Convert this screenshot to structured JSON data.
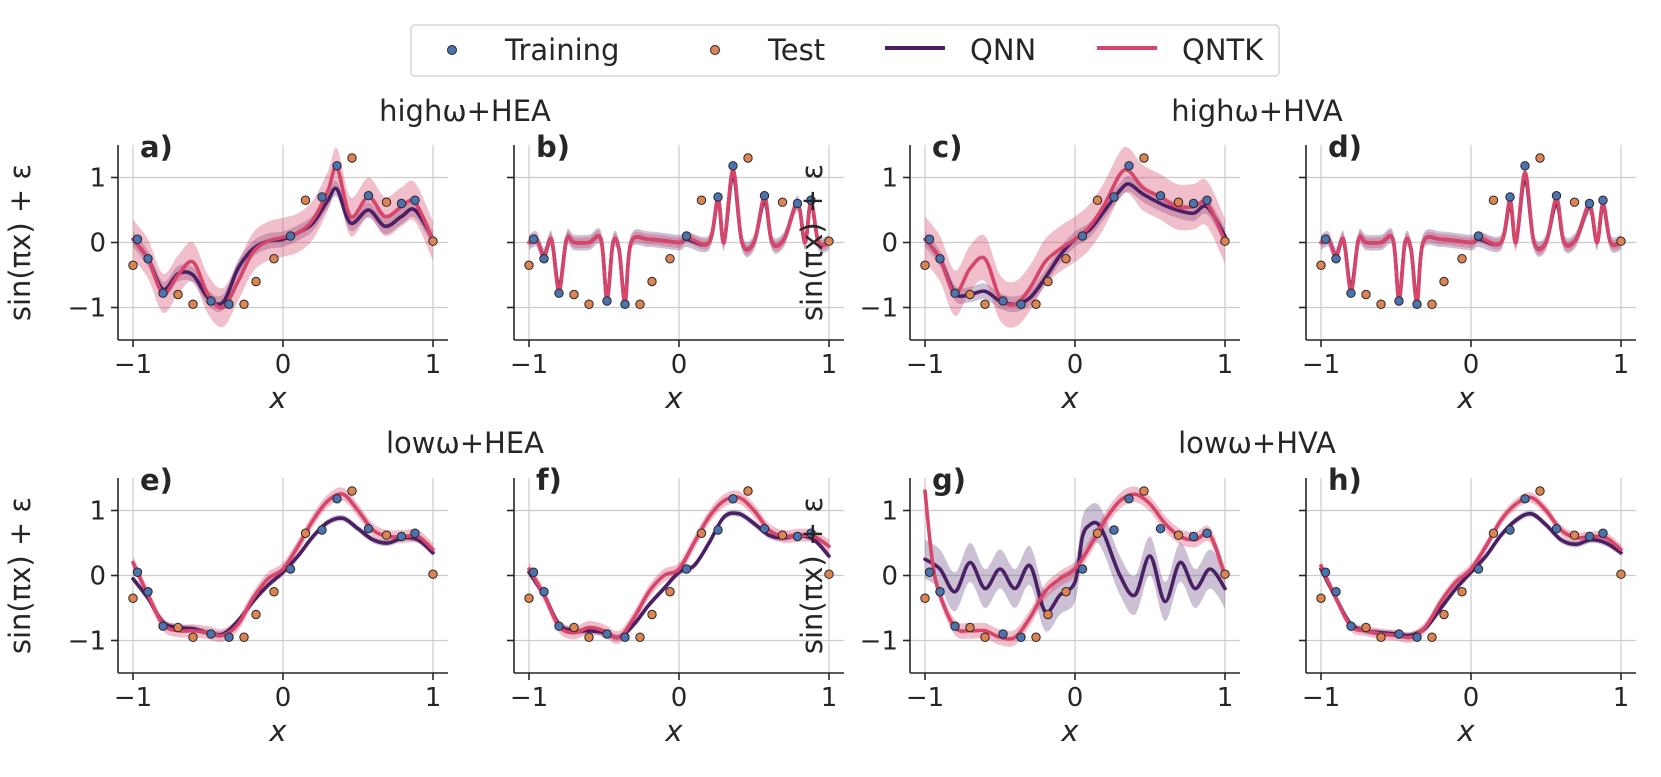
{
  "legend": {
    "training": "Training",
    "test": "Test",
    "qnn": "QNN",
    "qntk": "QNTK"
  },
  "colors": {
    "training": "#4c72b0",
    "test": "#dd8452",
    "qnn": "#4a1f63",
    "qntk": "#d7456a",
    "qnn_band": "#6a4a85",
    "qntk_band": "#d7456a"
  },
  "group_titles": [
    {
      "text": "highω+HEA"
    },
    {
      "text": "highω+HVA"
    },
    {
      "text": "lowω+HEA"
    },
    {
      "text": "lowω+HVA"
    }
  ],
  "axes": {
    "xlabel": "x",
    "ylabel": "sin(πx) + ε",
    "xlim": [
      -1.1,
      1.1
    ],
    "ylim": [
      -1.5,
      1.5
    ],
    "xticks": [
      -1,
      0,
      1
    ],
    "yticks": [
      -1,
      0,
      1
    ]
  },
  "chart_data": {
    "type": "scatter+line",
    "training": {
      "x": [
        -0.97,
        -0.9,
        -0.8,
        -0.48,
        -0.36,
        0.05,
        0.26,
        0.36,
        0.57,
        0.79,
        0.88
      ],
      "y": [
        0.05,
        -0.25,
        -0.78,
        -0.9,
        -0.95,
        0.1,
        0.7,
        1.18,
        0.72,
        0.6,
        0.65
      ]
    },
    "test": {
      "x": [
        -1.0,
        -0.7,
        -0.6,
        -0.26,
        -0.18,
        -0.06,
        0.15,
        0.46,
        0.69,
        1.0
      ],
      "y": [
        -0.35,
        -0.8,
        -0.95,
        -0.95,
        -0.6,
        -0.25,
        0.65,
        1.3,
        0.62,
        0.02
      ]
    },
    "panels": [
      {
        "label": "a)",
        "qnn": {
          "x": [
            -1,
            -0.9,
            -0.8,
            -0.7,
            -0.6,
            -0.5,
            -0.4,
            -0.3,
            -0.2,
            -0.1,
            0,
            0.1,
            0.2,
            0.3,
            0.36,
            0.45,
            0.57,
            0.68,
            0.79,
            0.88,
            1
          ],
          "y": [
            0.05,
            -0.25,
            -0.72,
            -0.48,
            -0.5,
            -0.85,
            -0.92,
            -0.4,
            -0.1,
            0.02,
            0.05,
            0.15,
            0.3,
            0.65,
            0.82,
            0.3,
            0.5,
            0.25,
            0.4,
            0.5,
            0.05
          ],
          "band": 0.12
        },
        "qntk": {
          "x": [
            -1,
            -0.9,
            -0.8,
            -0.7,
            -0.6,
            -0.5,
            -0.4,
            -0.3,
            -0.2,
            -0.1,
            0,
            0.1,
            0.2,
            0.3,
            0.36,
            0.45,
            0.57,
            0.68,
            0.79,
            0.88,
            1
          ],
          "y": [
            0.05,
            -0.25,
            -0.78,
            -0.5,
            -0.3,
            -0.8,
            -1.0,
            -0.6,
            -0.15,
            0.02,
            0.08,
            0.15,
            0.35,
            0.8,
            1.15,
            0.4,
            0.7,
            0.4,
            0.55,
            0.62,
            0.02
          ],
          "band": 0.3
        }
      },
      {
        "label": "b)",
        "qnn": {
          "x": [
            -1,
            -0.95,
            -0.9,
            -0.85,
            -0.8,
            -0.75,
            -0.7,
            -0.6,
            -0.52,
            -0.48,
            -0.44,
            -0.4,
            -0.36,
            -0.32,
            -0.2,
            0,
            0.05,
            0.2,
            0.26,
            0.3,
            0.36,
            0.42,
            0.5,
            0.57,
            0.62,
            0.7,
            0.79,
            0.84,
            0.88,
            0.93,
            1
          ],
          "y": [
            0,
            0.05,
            -0.2,
            0.05,
            -0.7,
            0.05,
            0.0,
            0.0,
            0.05,
            -0.85,
            0.0,
            -0.1,
            -0.9,
            0.0,
            0.05,
            0.0,
            0.05,
            0.0,
            0.65,
            0.0,
            1.05,
            0.0,
            0.0,
            0.65,
            0.0,
            0.05,
            0.6,
            0.0,
            0.62,
            0.0,
            0.0
          ],
          "band": 0.12
        },
        "qntk": {
          "x": [
            -1,
            -0.95,
            -0.9,
            -0.85,
            -0.8,
            -0.75,
            -0.7,
            -0.6,
            -0.52,
            -0.48,
            -0.44,
            -0.4,
            -0.36,
            -0.32,
            -0.2,
            0,
            0.05,
            0.2,
            0.26,
            0.3,
            0.36,
            0.42,
            0.5,
            0.57,
            0.62,
            0.7,
            0.79,
            0.84,
            0.88,
            0.93,
            1
          ],
          "y": [
            0,
            0.05,
            -0.22,
            0.05,
            -0.75,
            0.05,
            0.0,
            0.0,
            0.05,
            -0.88,
            0.0,
            -0.1,
            -0.93,
            0.0,
            0.05,
            0.0,
            0.08,
            0.0,
            0.68,
            0.0,
            1.12,
            0.0,
            0.0,
            0.7,
            0.0,
            0.05,
            0.6,
            0.0,
            0.63,
            0.0,
            0.0
          ],
          "band": 0.08
        }
      },
      {
        "label": "c)",
        "qnn": {
          "x": [
            -1,
            -0.9,
            -0.8,
            -0.7,
            -0.6,
            -0.5,
            -0.4,
            -0.3,
            -0.2,
            -0.1,
            0,
            0.1,
            0.2,
            0.3,
            0.36,
            0.45,
            0.57,
            0.68,
            0.79,
            0.88,
            1
          ],
          "y": [
            0.05,
            -0.25,
            -0.78,
            -0.8,
            -0.75,
            -0.9,
            -0.95,
            -0.85,
            -0.55,
            -0.2,
            0.05,
            0.2,
            0.5,
            0.8,
            0.9,
            0.75,
            0.6,
            0.5,
            0.45,
            0.55,
            0.1
          ],
          "band": 0.12
        },
        "qntk": {
          "x": [
            -1,
            -0.9,
            -0.8,
            -0.7,
            -0.6,
            -0.5,
            -0.4,
            -0.3,
            -0.2,
            -0.1,
            0,
            0.1,
            0.2,
            0.3,
            0.36,
            0.45,
            0.57,
            0.68,
            0.79,
            0.88,
            1
          ],
          "y": [
            0.05,
            -0.25,
            -0.78,
            -0.4,
            -0.25,
            -0.85,
            -0.95,
            -0.7,
            -0.3,
            -0.1,
            0.05,
            0.25,
            0.6,
            1.05,
            1.1,
            0.85,
            0.7,
            0.55,
            0.55,
            0.6,
            0.02
          ],
          "band": 0.35
        }
      },
      {
        "label": "d)",
        "qnn": {
          "x": [
            -1,
            -0.95,
            -0.9,
            -0.85,
            -0.8,
            -0.75,
            -0.7,
            -0.6,
            -0.52,
            -0.48,
            -0.44,
            -0.4,
            -0.36,
            -0.32,
            -0.2,
            0,
            0.05,
            0.2,
            0.26,
            0.3,
            0.36,
            0.42,
            0.5,
            0.57,
            0.62,
            0.7,
            0.79,
            0.84,
            0.88,
            0.93,
            1
          ],
          "y": [
            0,
            0.05,
            -0.2,
            0.05,
            -0.7,
            0.05,
            0.0,
            0.0,
            0.05,
            -0.85,
            0.0,
            -0.1,
            -0.9,
            0.0,
            0.05,
            0.0,
            0.05,
            0.0,
            0.6,
            0.0,
            1.0,
            0.0,
            0.0,
            0.62,
            0.0,
            0.05,
            0.55,
            0.0,
            0.58,
            0.0,
            0.0
          ],
          "band": 0.12
        },
        "qntk": {
          "x": [
            -1,
            -0.95,
            -0.9,
            -0.85,
            -0.8,
            -0.75,
            -0.7,
            -0.6,
            -0.52,
            -0.48,
            -0.44,
            -0.4,
            -0.36,
            -0.32,
            -0.2,
            0,
            0.05,
            0.2,
            0.26,
            0.3,
            0.36,
            0.42,
            0.5,
            0.57,
            0.62,
            0.7,
            0.79,
            0.84,
            0.88,
            0.93,
            1
          ],
          "y": [
            0,
            0.05,
            -0.22,
            0.05,
            -0.75,
            0.05,
            0.0,
            0.0,
            0.05,
            -0.88,
            0.0,
            -0.1,
            -0.93,
            0.0,
            0.05,
            0.0,
            0.08,
            0.0,
            0.65,
            0.0,
            1.08,
            0.0,
            0.0,
            0.68,
            0.0,
            0.05,
            0.58,
            0.0,
            0.6,
            0.0,
            0.0
          ],
          "band": 0.08
        }
      },
      {
        "label": "e)",
        "qnn": {
          "x": [
            -1,
            -0.9,
            -0.8,
            -0.7,
            -0.6,
            -0.5,
            -0.4,
            -0.3,
            -0.2,
            -0.1,
            0,
            0.1,
            0.2,
            0.3,
            0.4,
            0.5,
            0.6,
            0.7,
            0.8,
            0.9,
            1
          ],
          "y": [
            -0.05,
            -0.35,
            -0.72,
            -0.8,
            -0.82,
            -0.88,
            -0.9,
            -0.7,
            -0.4,
            -0.15,
            0.05,
            0.3,
            0.6,
            0.82,
            0.88,
            0.72,
            0.55,
            0.5,
            0.58,
            0.55,
            0.35
          ],
          "band": 0.05
        },
        "qntk": {
          "x": [
            -1,
            -0.9,
            -0.8,
            -0.7,
            -0.6,
            -0.5,
            -0.4,
            -0.3,
            -0.2,
            -0.1,
            0,
            0.1,
            0.2,
            0.3,
            0.4,
            0.5,
            0.6,
            0.7,
            0.8,
            0.9,
            1
          ],
          "y": [
            0.2,
            -0.3,
            -0.75,
            -0.85,
            -0.85,
            -0.88,
            -0.92,
            -0.75,
            -0.35,
            -0.05,
            0.1,
            0.45,
            0.85,
            1.15,
            1.25,
            1.0,
            0.7,
            0.6,
            0.6,
            0.6,
            0.4
          ],
          "band": 0.1
        }
      },
      {
        "label": "f)",
        "qnn": {
          "x": [
            -1,
            -0.9,
            -0.8,
            -0.7,
            -0.6,
            -0.5,
            -0.4,
            -0.3,
            -0.2,
            -0.1,
            0,
            0.1,
            0.2,
            0.3,
            0.4,
            0.5,
            0.6,
            0.7,
            0.8,
            0.9,
            1
          ],
          "y": [
            0.05,
            -0.3,
            -0.75,
            -0.85,
            -0.85,
            -0.88,
            -0.95,
            -0.75,
            -0.45,
            -0.2,
            0.05,
            0.15,
            0.5,
            0.9,
            0.95,
            0.8,
            0.62,
            0.58,
            0.62,
            0.55,
            0.3
          ],
          "band": 0.05
        },
        "qntk": {
          "x": [
            -1,
            -0.9,
            -0.8,
            -0.7,
            -0.6,
            -0.5,
            -0.4,
            -0.3,
            -0.2,
            -0.1,
            0,
            0.1,
            0.2,
            0.3,
            0.4,
            0.5,
            0.6,
            0.7,
            0.8,
            0.9,
            1
          ],
          "y": [
            0.1,
            -0.3,
            -0.78,
            -0.88,
            -0.8,
            -0.85,
            -0.95,
            -0.65,
            -0.25,
            0.0,
            0.1,
            0.5,
            0.9,
            1.15,
            1.2,
            1.0,
            0.7,
            0.6,
            0.62,
            0.6,
            0.45
          ],
          "band": 0.1
        }
      },
      {
        "label": "g)",
        "qnn": {
          "x": [
            -1,
            -0.9,
            -0.8,
            -0.7,
            -0.6,
            -0.5,
            -0.4,
            -0.3,
            -0.2,
            -0.1,
            0,
            0.05,
            0.1,
            0.15,
            0.2,
            0.3,
            0.4,
            0.5,
            0.6,
            0.7,
            0.8,
            0.9,
            1
          ],
          "y": [
            0.25,
            0.1,
            -0.25,
            0.2,
            -0.2,
            0.1,
            -0.2,
            0.15,
            -0.55,
            -0.3,
            -0.1,
            0.6,
            0.78,
            0.8,
            0.6,
            0.0,
            -0.3,
            0.3,
            -0.4,
            0.2,
            -0.2,
            0.1,
            -0.2
          ],
          "band": 0.3
        },
        "qntk": {
          "x": [
            -1,
            -0.95,
            -0.9,
            -0.8,
            -0.7,
            -0.6,
            -0.5,
            -0.4,
            -0.3,
            -0.2,
            -0.1,
            0,
            0.1,
            0.2,
            0.3,
            0.4,
            0.5,
            0.6,
            0.7,
            0.8,
            0.9,
            1
          ],
          "y": [
            1.3,
            0.2,
            -0.3,
            -0.8,
            -0.85,
            -0.85,
            -0.95,
            -0.95,
            -0.65,
            -0.25,
            -0.05,
            0.1,
            0.45,
            0.85,
            1.15,
            1.25,
            1.1,
            0.8,
            0.6,
            0.55,
            0.62,
            0.0
          ],
          "band": 0.12
        }
      },
      {
        "label": "h)",
        "qnn": {
          "x": [
            -1,
            -0.9,
            -0.8,
            -0.7,
            -0.6,
            -0.5,
            -0.4,
            -0.3,
            -0.2,
            -0.1,
            0,
            0.1,
            0.2,
            0.3,
            0.4,
            0.5,
            0.6,
            0.7,
            0.8,
            0.9,
            1
          ],
          "y": [
            0.1,
            -0.35,
            -0.75,
            -0.85,
            -0.88,
            -0.9,
            -0.92,
            -0.8,
            -0.5,
            -0.2,
            0.05,
            0.3,
            0.62,
            0.85,
            0.95,
            0.78,
            0.55,
            0.48,
            0.55,
            0.5,
            0.35
          ],
          "band": 0.05
        },
        "qntk": {
          "x": [
            -1,
            -0.9,
            -0.8,
            -0.7,
            -0.6,
            -0.5,
            -0.4,
            -0.3,
            -0.2,
            -0.1,
            0,
            0.1,
            0.2,
            0.3,
            0.4,
            0.5,
            0.6,
            0.7,
            0.8,
            0.9,
            1
          ],
          "y": [
            0.15,
            -0.35,
            -0.78,
            -0.85,
            -0.9,
            -0.92,
            -0.95,
            -0.78,
            -0.4,
            -0.1,
            0.1,
            0.45,
            0.85,
            1.1,
            1.2,
            1.0,
            0.7,
            0.58,
            0.6,
            0.58,
            0.4
          ],
          "band": 0.08
        }
      }
    ]
  }
}
